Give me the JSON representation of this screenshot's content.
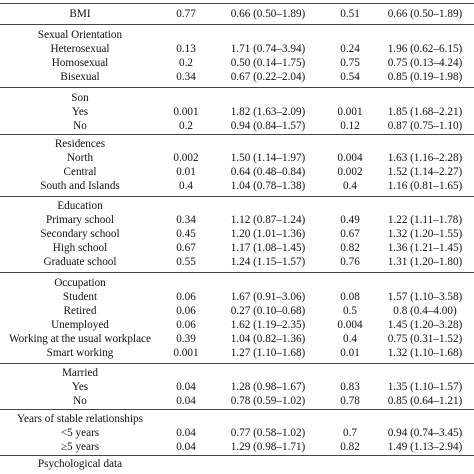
{
  "rows": {
    "bmi": [
      "BMI",
      "0.77",
      "0.66 (0.50–1.89)",
      "0.51",
      "0.66 (0.50–1.89)"
    ],
    "sexual_orientation": {
      "title": "Sexual Orientation",
      "heterosexual": [
        "Heterosexual",
        "0.13",
        "1.71 (0.74–3.94)",
        "0.24",
        "1.96 (0.62–6.15)"
      ],
      "homosexual": [
        "Homosexual",
        "0.2",
        "0.50 (0.14–1.75)",
        "0.75",
        "0.75 (0.13–4.24)"
      ],
      "bisexual": [
        "Bisexual",
        "0.34",
        "0.67 (0.22–2.04)",
        "0.54",
        "0.85 (0.19–1.98)"
      ]
    },
    "son": {
      "title": "Son",
      "yes": [
        "Yes",
        "0.001",
        "1.82 (1.63–2.09)",
        "0.001",
        "1.85 (1.68–2.21)"
      ],
      "no": [
        "No",
        "0.2",
        "0.94 (0.84–1.57)",
        "0.12",
        "0.87 (0.75–1.10)"
      ]
    },
    "residences": {
      "title": "Residences",
      "north": [
        "North",
        "0.002",
        "1.50 (1.14–1.97)",
        "0.004",
        "1.63 (1.16–2.28)"
      ],
      "central": [
        "Central",
        "0.01",
        "0.64 (0.48–0.84)",
        "0.002",
        "1.52 (1.14–2.27)"
      ],
      "south": [
        "South and Islands",
        "0.4",
        "1.04 (0.78–1.38)",
        "0.4",
        "1.16 (0.81–1.65)"
      ]
    },
    "education": {
      "title": "Education",
      "primary": [
        "Primary school",
        "0.34",
        "1.12 (0.87–1.24)",
        "0.49",
        "1.22 (1.11–1.78)"
      ],
      "secondary": [
        "Secondary school",
        "0.45",
        "1.20 (1.01–1.36)",
        "0.67",
        "1.32 (1.20–1.55)"
      ],
      "high": [
        "High school",
        "0.67",
        "1.17 (1.08–1.45)",
        "0.82",
        "1.36 (1.21–1.45)"
      ],
      "graduate": [
        "Graduate school",
        "0.55",
        "1.24 (1.15–1.57)",
        "0.76",
        "1.31 (1.20–1.80)"
      ]
    },
    "occupation": {
      "title": "Occupation",
      "student": [
        "Student",
        "0.06",
        "1.67 (0.91–3.06)",
        "0.08",
        "1.57 (1.10–3.58)"
      ],
      "retired": [
        "Retired",
        "0.06",
        "0.27 (0.10–0.68)",
        "0.5",
        "0.8 (0.4–4.00)"
      ],
      "unemployed": [
        "Unemployed",
        "0.06",
        "1.62 (1.19–2.35)",
        "0.004",
        "1.45 (1.20–3.28)"
      ],
      "usual_workplace": [
        "Working at the usual workplace",
        "0.39",
        "1.04 (0.82–1.36)",
        "0.4",
        "0.75 (0.31–1.52)"
      ],
      "smart_working": [
        "Smart working",
        "0.001",
        "1.27 (1.10–1.68)",
        "0.01",
        "1.32 (1.10–1.68)"
      ]
    },
    "married": {
      "title": "Married",
      "yes": [
        "Yes",
        "0.04",
        "1.28 (0.98–1.67)",
        "0.83",
        "1.35 (1.10–1.57)"
      ],
      "no": [
        "No",
        "0.04",
        "0.78 (0.59–1.02)",
        "0.78",
        "0.85 (0.64–1.21)"
      ]
    },
    "relationships": {
      "title": "Years of stable relationships",
      "lt5": [
        "<5 years",
        "0.04",
        "0.77 (0.58–1.02)",
        "0.7",
        "0.94 (0.74–3.45)"
      ],
      "ge5": [
        "≥5 years",
        "0.04",
        "1.29 (0.98–1.71)",
        "0.82",
        "1.49 (1.13–2.94)"
      ]
    },
    "psychological": {
      "title": "Psychological data"
    }
  }
}
